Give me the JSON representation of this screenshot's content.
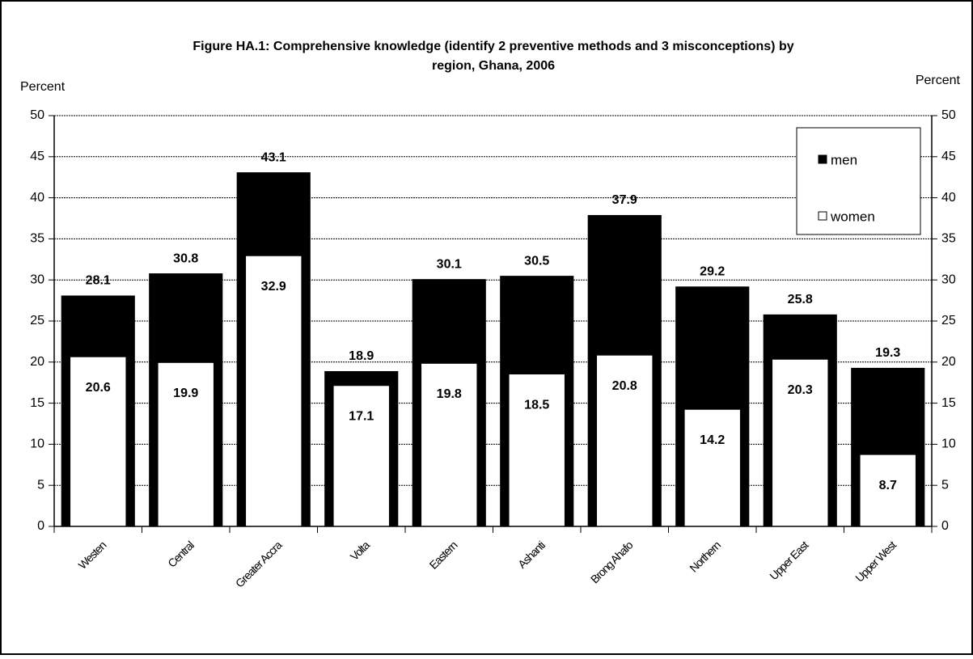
{
  "chart_data": {
    "type": "bar",
    "title": [
      "Figure HA.1:  Comprehensive knowledge (identify 2 preventive methods and 3 misconceptions) by",
      "region, Ghana, 2006"
    ],
    "ylabel": "Percent",
    "y2label": "Percent",
    "categories": [
      "Westen",
      "Central",
      "Greater Accra",
      "Volta",
      "Eastern",
      "Ashanti",
      "Brong Ahafo",
      "Northern",
      "Upper East",
      "Upper West"
    ],
    "series": [
      {
        "name": "men",
        "color": "#000000",
        "values": [
          28.1,
          30.8,
          43.1,
          18.9,
          30.1,
          30.5,
          37.9,
          29.2,
          25.8,
          19.3
        ]
      },
      {
        "name": "women",
        "color": "#ffffff",
        "values": [
          20.6,
          19.9,
          32.9,
          17.1,
          19.8,
          18.5,
          20.8,
          14.2,
          20.3,
          8.7
        ]
      }
    ],
    "ylim": [
      0,
      50
    ],
    "yticks": [
      0,
      5,
      10,
      15,
      20,
      25,
      30,
      35,
      40,
      45,
      50
    ],
    "grid": true,
    "legend": "upper right"
  }
}
